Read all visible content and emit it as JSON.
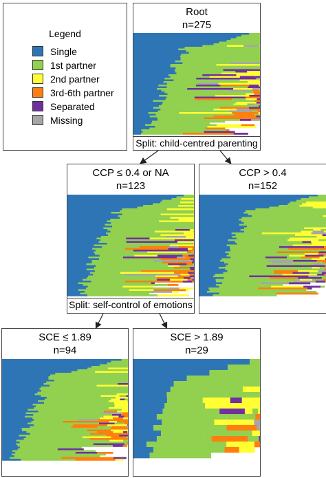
{
  "legend": {
    "title": "Legend",
    "items": [
      {
        "label": "Single",
        "color": "#2E75B6"
      },
      {
        "label": "1st partner",
        "color": "#92D050"
      },
      {
        "label": "2nd partner",
        "color": "#FFFF33"
      },
      {
        "label": "3rd-6th partner",
        "color": "#FF7F0E"
      },
      {
        "label": "Separated",
        "color": "#7030A0"
      },
      {
        "label": "Missing",
        "color": "#A6A6A6"
      }
    ]
  },
  "nodes": {
    "root": {
      "title": "Root",
      "n": "n=275",
      "split": "Split: child-centred parenting"
    },
    "ccp_low": {
      "title": "CCP ≤ 0.4 or NA",
      "n": "n=123",
      "split": "Split: self-control of emotions"
    },
    "ccp_high": {
      "title": "CCP > 0.4",
      "n": "n=152"
    },
    "sce_low": {
      "title": "SCE ≤ 1.89",
      "n": "n=94"
    },
    "sce_high": {
      "title": "SCE > 1.89",
      "n": "n=29"
    }
  }
}
